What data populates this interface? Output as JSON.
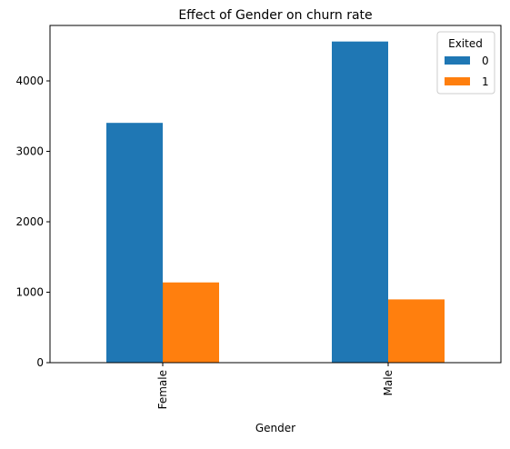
{
  "chart_data": {
    "type": "bar",
    "title": "Effect of Gender on churn rate",
    "xlabel": "Gender",
    "ylabel": "",
    "categories": [
      "Female",
      "Male"
    ],
    "series": [
      {
        "name": "0",
        "values": [
          3404,
          4559
        ],
        "color": "#1f77b4"
      },
      {
        "name": "1",
        "values": [
          1139,
          898
        ],
        "color": "#ff7f0e"
      }
    ],
    "ylim": [
      0,
      4787
    ],
    "yticks": [
      0,
      1000,
      2000,
      3000,
      4000
    ],
    "legend": {
      "title": "Exited",
      "placement": "top-right"
    },
    "grid": false
  }
}
